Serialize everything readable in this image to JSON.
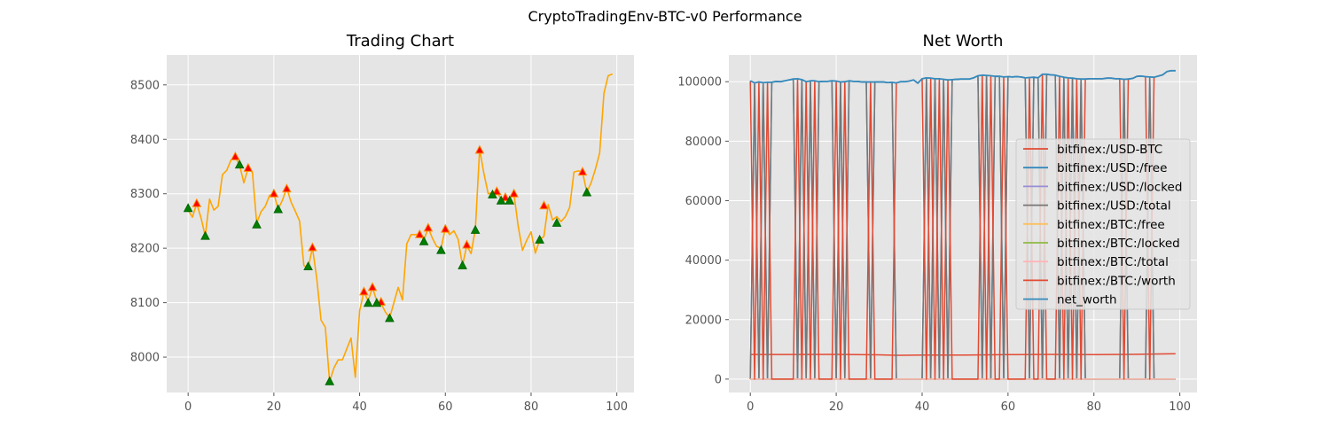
{
  "figure": {
    "title": "CryptoTradingEnv-BTC-v0 Performance"
  },
  "chart_data": [
    {
      "type": "line",
      "title": "Trading Chart",
      "xlim": [
        -5,
        104
      ],
      "ylim": [
        7935,
        8555
      ],
      "x_ticks": [
        "0",
        "20",
        "40",
        "60",
        "80",
        "100"
      ],
      "y_ticks": [
        "8000",
        "8100",
        "8200",
        "8300",
        "8400",
        "8500"
      ],
      "grid": true,
      "series": [
        {
          "color": "#ffa500",
          "x": [
            0,
            1,
            2,
            3,
            4,
            5,
            6,
            7,
            8,
            9,
            10,
            11,
            12,
            13,
            14,
            15,
            16,
            17,
            18,
            19,
            20,
            21,
            22,
            23,
            24,
            25,
            26,
            27,
            28,
            29,
            30,
            31,
            32,
            33,
            34,
            35,
            36,
            37,
            38,
            39,
            40,
            41,
            42,
            43,
            44,
            45,
            46,
            47,
            48,
            49,
            50,
            51,
            52,
            53,
            54,
            55,
            56,
            57,
            58,
            59,
            60,
            61,
            62,
            63,
            64,
            65,
            66,
            67,
            68,
            69,
            70,
            71,
            72,
            73,
            74,
            75,
            76,
            77,
            78,
            79,
            80,
            81,
            82,
            83,
            84,
            85,
            86,
            87,
            88,
            89,
            90,
            91,
            92,
            93,
            94,
            95,
            96,
            97,
            98,
            99
          ],
          "values": [
            8270,
            8257,
            8282,
            8256,
            8222,
            8290,
            8270,
            8277,
            8335,
            8343,
            8362,
            8367,
            8353,
            8320,
            8347,
            8339,
            8246,
            8267,
            8277,
            8297,
            8300,
            8272,
            8288,
            8311,
            8285,
            8268,
            8250,
            8168,
            8164,
            8201,
            8145,
            8068,
            8055,
            7955,
            7980,
            7995,
            7995,
            8015,
            8035,
            7963,
            8085,
            8120,
            8103,
            8128,
            8103,
            8099,
            8083,
            8072,
            8100,
            8128,
            8105,
            8208,
            8225,
            8225,
            8226,
            8215,
            8237,
            8218,
            8203,
            8200,
            8237,
            8225,
            8232,
            8216,
            8168,
            8205,
            8190,
            8235,
            8382,
            8337,
            8300,
            8302,
            8305,
            8290,
            8293,
            8290,
            8300,
            8240,
            8196,
            8215,
            8230,
            8191,
            8215,
            8222,
            8280,
            8252,
            8258,
            8249,
            8258,
            8275,
            8340,
            8342,
            8340,
            8303,
            8320,
            8345,
            8375,
            8485,
            8517,
            8520
          ]
        }
      ],
      "sell_markers": {
        "color": "#ff0000",
        "x": [
          2,
          11,
          14,
          20,
          23,
          29,
          41,
          43,
          45,
          54,
          56,
          60,
          65,
          68,
          72,
          74,
          76,
          83,
          92
        ],
        "y": [
          8282,
          8368,
          8347,
          8300,
          8309,
          8201,
          8120,
          8128,
          8101,
          8225,
          8237,
          8235,
          8206,
          8380,
          8304,
          8293,
          8300,
          8278,
          8340
        ]
      },
      "buy_markers": {
        "color": "#008000",
        "x": [
          0,
          4,
          12,
          16,
          21,
          28,
          33,
          42,
          44,
          47,
          55,
          59,
          64,
          67,
          71,
          73,
          75,
          82,
          86,
          93
        ],
        "y": [
          8273,
          8222,
          8353,
          8243,
          8271,
          8166,
          7955,
          8099,
          8099,
          8071,
          8212,
          8196,
          8168,
          8233,
          8298,
          8287,
          8287,
          8215,
          8246,
          8302
        ]
      }
    },
    {
      "type": "line",
      "title": "Net Worth",
      "xlim": [
        -5,
        104
      ],
      "ylim": [
        -4500,
        109000
      ],
      "x_ticks": [
        "0",
        "20",
        "40",
        "60",
        "80",
        "100"
      ],
      "y_ticks": [
        "0",
        "20000",
        "40000",
        "60000",
        "80000",
        "100000"
      ],
      "grid": true,
      "legend_position": "center-right",
      "toggle_points": [
        0,
        1,
        2,
        3,
        4,
        5,
        11,
        12,
        13,
        14,
        15,
        16,
        20,
        21,
        22,
        23,
        28,
        29,
        34,
        41,
        42,
        43,
        44,
        45,
        46,
        47,
        54,
        55,
        56,
        57,
        59,
        60,
        65,
        66,
        68,
        69,
        72,
        73,
        74,
        75,
        76,
        77,
        78,
        87,
        88,
        93,
        94
      ],
      "series": [
        {
          "name": "bitfinex:/USD-BTC",
          "color": "#e24a33",
          "x": [
            0,
            20,
            30,
            34,
            40,
            50,
            60,
            70,
            80,
            90,
            99
          ],
          "values": [
            8270,
            8300,
            8145,
            7995,
            8085,
            8105,
            8237,
            8300,
            8230,
            8340,
            8520
          ]
        },
        {
          "name": "bitfinex:/USD:/free",
          "color": "#348abd",
          "stepped_with_toggles": true
        },
        {
          "name": "bitfinex:/USD:/locked",
          "color": "#988ed5",
          "constant": 0
        },
        {
          "name": "bitfinex:/USD:/total",
          "color": "#777777",
          "stepped_with_toggles": true
        },
        {
          "name": "bitfinex:/BTC:/free",
          "color": "#fbc15e",
          "constant": 0
        },
        {
          "name": "bitfinex:/BTC:/locked",
          "color": "#8eba42",
          "constant": 0
        },
        {
          "name": "bitfinex:/BTC:/total",
          "color": "#ffb5b8",
          "constant": 0
        },
        {
          "name": "bitfinex:/BTC:/worth",
          "color": "#e24a33",
          "stepped_with_toggles": true,
          "inverted": true
        },
        {
          "name": "net_worth",
          "color": "#348abd",
          "x": [
            0,
            1,
            2,
            3,
            4,
            5,
            6,
            7,
            8,
            9,
            10,
            11,
            12,
            13,
            14,
            15,
            16,
            17,
            18,
            19,
            20,
            21,
            22,
            23,
            24,
            25,
            26,
            27,
            28,
            29,
            30,
            31,
            32,
            33,
            34,
            35,
            36,
            37,
            38,
            39,
            40,
            41,
            42,
            43,
            44,
            45,
            46,
            47,
            48,
            49,
            50,
            51,
            52,
            53,
            54,
            55,
            56,
            57,
            58,
            59,
            60,
            61,
            62,
            63,
            64,
            65,
            66,
            67,
            68,
            69,
            70,
            71,
            72,
            73,
            74,
            75,
            76,
            77,
            78,
            79,
            80,
            81,
            82,
            83,
            84,
            85,
            86,
            87,
            88,
            89,
            90,
            91,
            92,
            93,
            94,
            95,
            96,
            97,
            98,
            99
          ],
          "values": [
            100300,
            99600,
            99900,
            99700,
            99800,
            99800,
            100100,
            100000,
            100300,
            100600,
            100900,
            101000,
            100700,
            100000,
            100300,
            100300,
            100000,
            100100,
            100100,
            100300,
            100200,
            99900,
            100000,
            100300,
            100100,
            100100,
            99900,
            99900,
            99900,
            99900,
            99900,
            99900,
            99700,
            99800,
            99600,
            100000,
            100000,
            100200,
            100600,
            99500,
            101000,
            101300,
            101200,
            101000,
            101000,
            100800,
            100600,
            100700,
            100800,
            100900,
            100900,
            100900,
            101300,
            102000,
            102200,
            102100,
            102000,
            101800,
            101800,
            101600,
            101700,
            101600,
            101700,
            101600,
            101300,
            101400,
            101500,
            101300,
            102500,
            102500,
            102300,
            102200,
            101800,
            101500,
            101300,
            101200,
            101000,
            100900,
            100900,
            101000,
            101000,
            101000,
            101000,
            101200,
            101200,
            101000,
            101000,
            100800,
            100900,
            101100,
            101800,
            101900,
            101700,
            101600,
            101500,
            101900,
            102300,
            103400,
            103700,
            103700
          ]
        }
      ]
    }
  ]
}
